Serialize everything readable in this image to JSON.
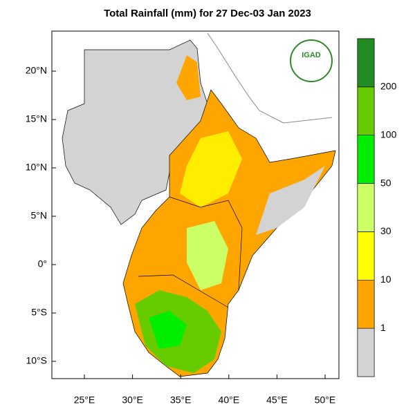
{
  "title": "Total Rainfall (mm) for 27 Dec-03 Jan 2023",
  "logo_text": "IGAD",
  "longitude_ticks": [
    {
      "value": 25,
      "label": "25°E"
    },
    {
      "value": 30,
      "label": "30°E"
    },
    {
      "value": 35,
      "label": "35°E"
    },
    {
      "value": 40,
      "label": "40°E"
    },
    {
      "value": 45,
      "label": "45°E"
    },
    {
      "value": 50,
      "label": "50°E"
    }
  ],
  "latitude_ticks": [
    {
      "value": 20,
      "label": "20°N"
    },
    {
      "value": 15,
      "label": "15°N"
    },
    {
      "value": 10,
      "label": "10°N"
    },
    {
      "value": 5,
      "label": "5°N"
    },
    {
      "value": 0,
      "label": "0°"
    },
    {
      "value": -5,
      "label": "5°S"
    },
    {
      "value": -10,
      "label": "10°S"
    }
  ],
  "colorbar": {
    "levels": [
      1,
      10,
      30,
      50,
      100,
      200
    ],
    "colors": [
      "#d3d3d3",
      "#ffa500",
      "#ffff00",
      "#ccff66",
      "#00ee00",
      "#66cc00",
      "#228b22"
    ]
  }
}
